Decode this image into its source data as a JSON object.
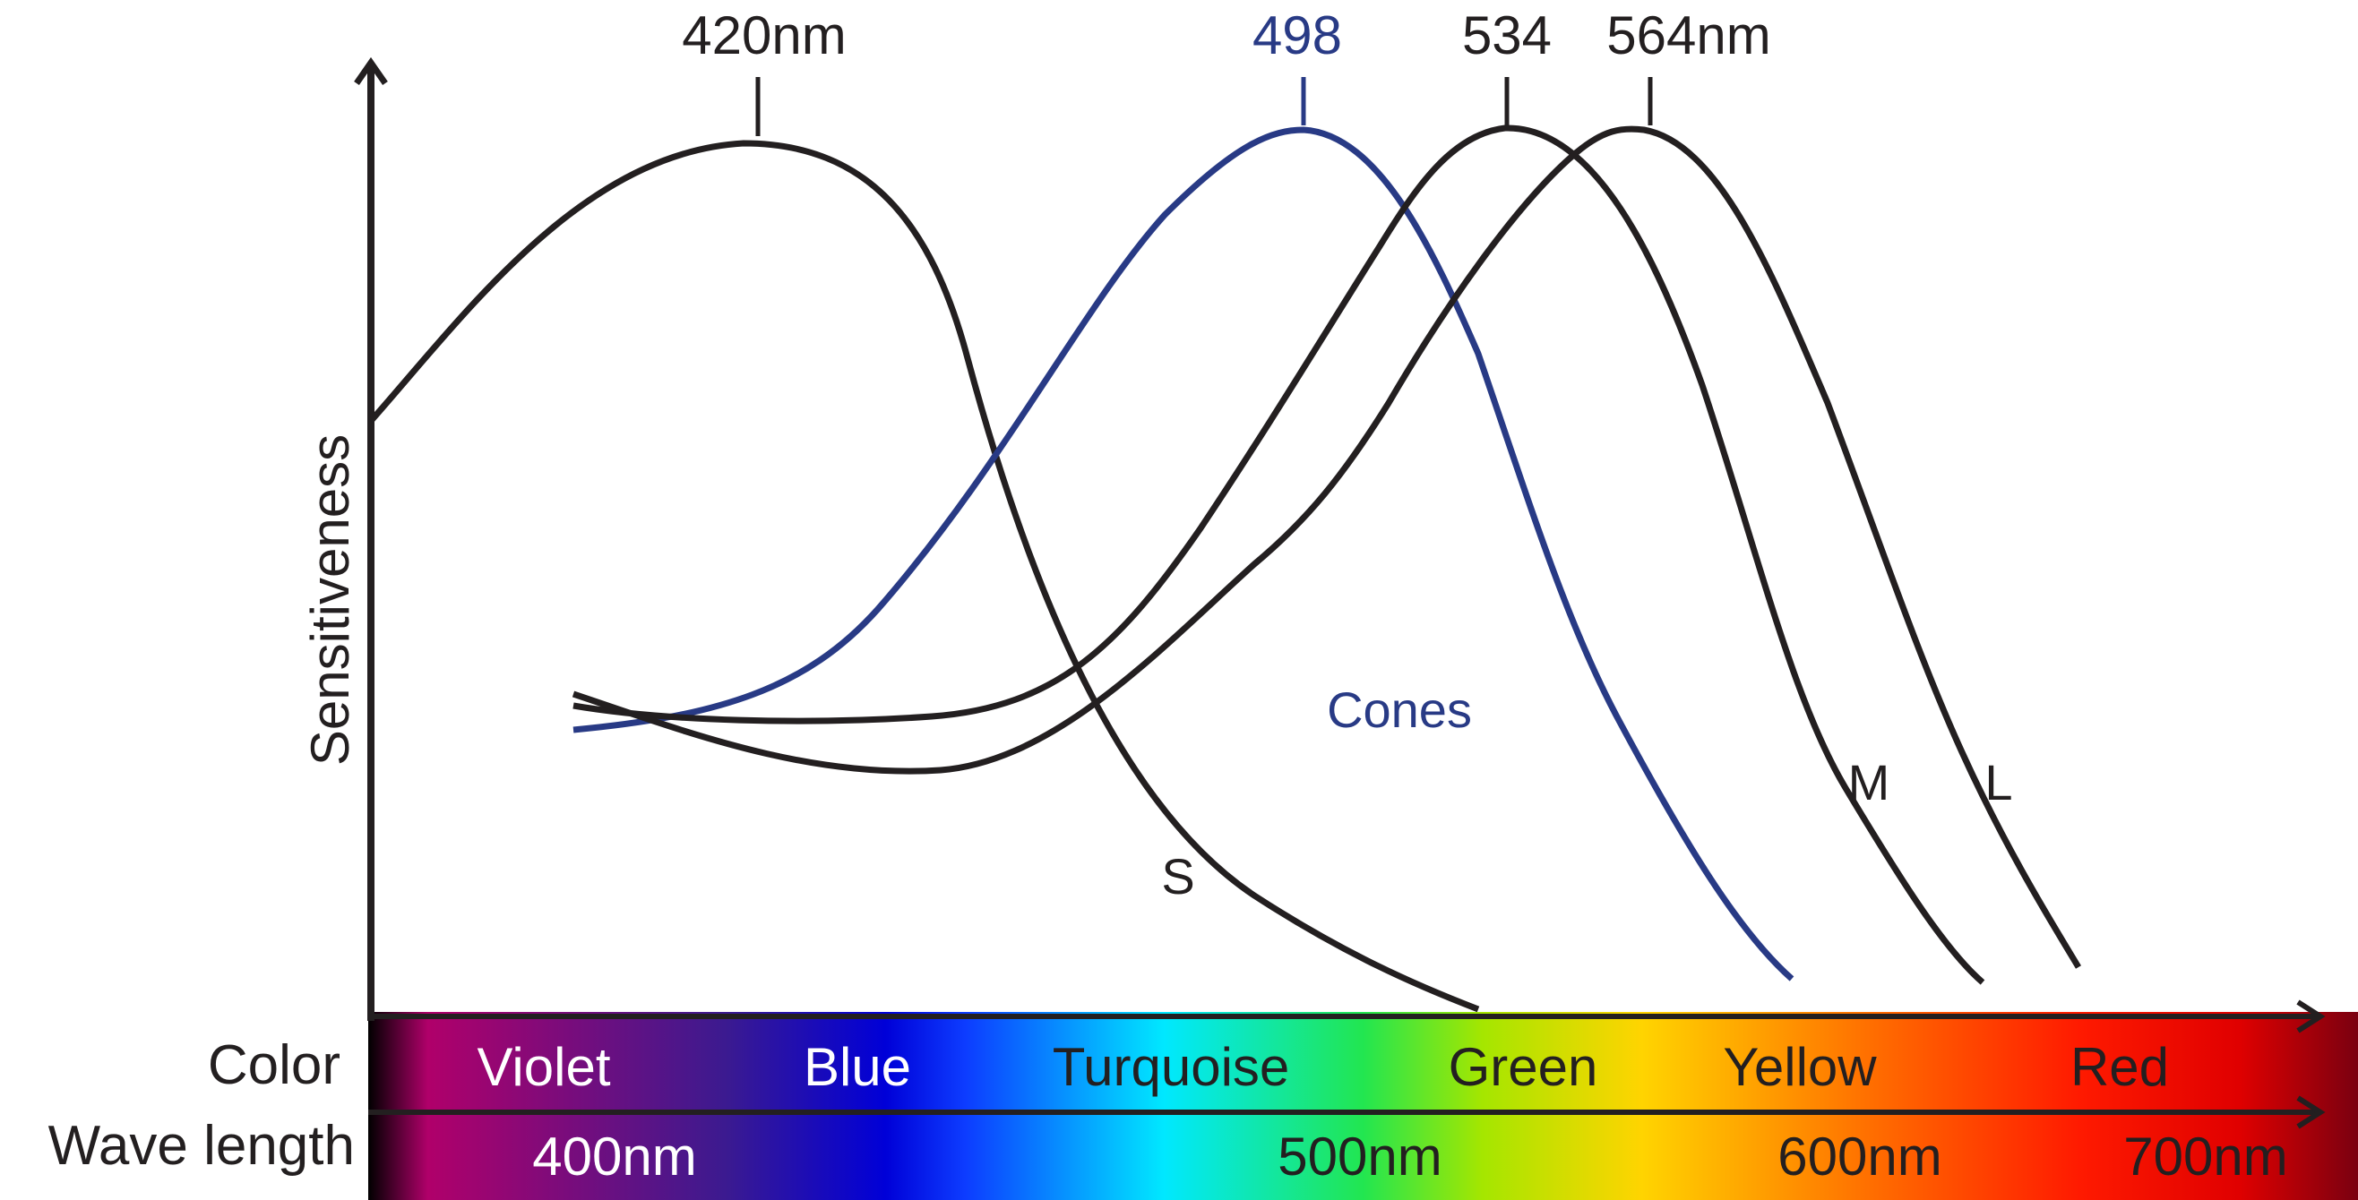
{
  "y_axis_label": "Sensitiveness",
  "colors": {
    "curve_black": "#231f20",
    "curve_blue": "#283a85",
    "text_black": "#231f20",
    "text_blue": "#283a85"
  },
  "peaks": {
    "s": "420nm",
    "rod": "498",
    "m": "534",
    "l": "564nm"
  },
  "curve_labels": {
    "s": "S",
    "rod": "Cones",
    "m": "M",
    "l": "L"
  },
  "spectrum": {
    "color_row_label": "Color",
    "wavelength_row_label": "Wave length",
    "color_names": [
      "Violet",
      "Blue",
      "Turquoise",
      "Green",
      "Yellow",
      "Red"
    ],
    "wavelengths": [
      "400nm",
      "500nm",
      "600nm",
      "700nm"
    ],
    "gradient_stops": [
      "#000000",
      "#b0006a",
      "#3b1a90",
      "#0000d8",
      "#0d3cff",
      "#00e8ff",
      "#22e650",
      "#a5e600",
      "#ffd400",
      "#ff6a00",
      "#ff1a00",
      "#e00000",
      "#7a0010"
    ]
  }
}
